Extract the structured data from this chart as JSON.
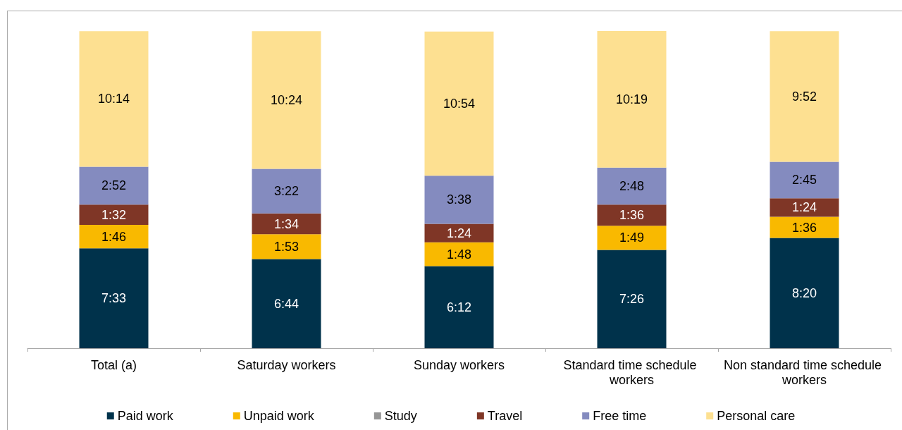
{
  "chart_data": {
    "type": "bar",
    "stacked": true,
    "legend": "bottom",
    "tick_labels": "x",
    "categories": [
      "Total (a)",
      "Saturday workers",
      "Sunday workers",
      "Standard time schedule workers",
      "Non standard time schedule workers"
    ],
    "series": [
      {
        "name": "Paid work",
        "color": "#00324b",
        "values": [
          453,
          404,
          372,
          446,
          500
        ],
        "value_labels": [
          "7:33",
          "6:44",
          "6:12",
          "7:26",
          "8:20"
        ]
      },
      {
        "name": "Unpaid work",
        "color": "#f9b900",
        "values": [
          106,
          113,
          108,
          109,
          96
        ],
        "value_labels": [
          "1:46",
          "1:53",
          "1:48",
          "1:49",
          "1:36"
        ]
      },
      {
        "name": "Study",
        "color": "#969696",
        "values": [
          null,
          null,
          null,
          null,
          null
        ]
      },
      {
        "name": "Travel",
        "color": "#7f3626",
        "values": [
          92,
          94,
          84,
          96,
          84
        ],
        "value_labels": [
          "1:32",
          "1:34",
          "1:24",
          "1:36",
          "1:24"
        ]
      },
      {
        "name": "Free time",
        "color": "#848bbf",
        "values": [
          172,
          202,
          218,
          168,
          165
        ],
        "value_labels": [
          "2:52",
          "3:22",
          "3:38",
          "2:48",
          "2:45"
        ]
      },
      {
        "name": "Personal care",
        "color": "#fde091",
        "values": [
          614,
          624,
          654,
          619,
          592
        ],
        "value_labels": [
          "10:14",
          "10:24",
          "10:54",
          "10:19",
          "9:52"
        ]
      }
    ]
  }
}
